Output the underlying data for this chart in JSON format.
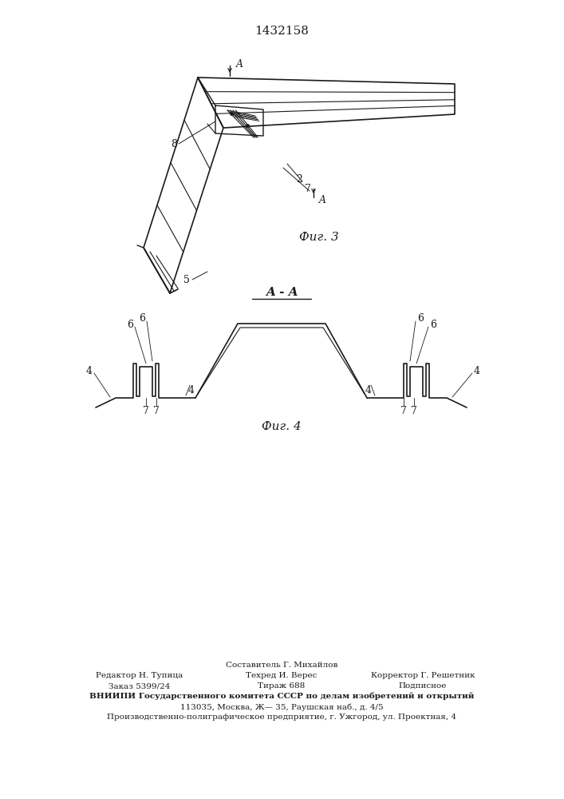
{
  "patent_number": "1432158",
  "fig3_label": "Фиг. 3",
  "fig4_label": "Фиг. 4",
  "section_label": "A - A",
  "bg_color": "#ffffff",
  "line_color": "#1a1a1a",
  "footer_col1_line1": "Редактор Н. Тупица",
  "footer_col1_line2": "Заказ 5399/24",
  "footer_col2_title": "Составитель Г. Михайлов",
  "footer_col2_line1": "Техред И. Верес",
  "footer_col2_line2": "Тираж 688",
  "footer_col3_line1": "Корректор Г. Решетник",
  "footer_col3_line2": "Подписное",
  "footer_vniipи": "ВНИИПИ Государственного комитета СССР по делам изобретений и открытий",
  "footer_address": "113035, Москва, Ж— 35, Раушская наб., д. 4/5",
  "footer_plant": "Производственно-полиграфическое предприятие, г. Ужгород, ул. Проектная, 4"
}
